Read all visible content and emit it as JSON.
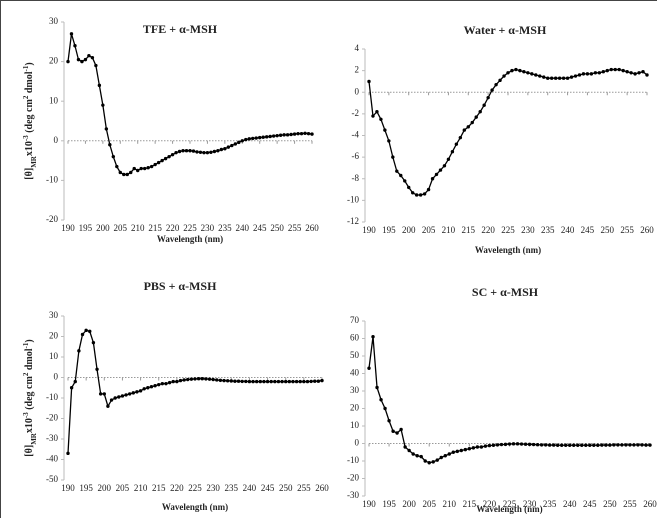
{
  "chart_data": [
    {
      "type": "line",
      "title": "TFE + α-MSH",
      "x_label": "Wavelength (nm)",
      "y_label": [
        "[θ]",
        "MR",
        "x10",
        "-3",
        " (deg cm",
        "2",
        " dmol",
        "-1",
        ")"
      ],
      "color": "#000000",
      "x": [
        190,
        191,
        192,
        193,
        194,
        195,
        196,
        197,
        198,
        199,
        200,
        201,
        202,
        203,
        204,
        205,
        206,
        207,
        208,
        209,
        210,
        211,
        212,
        213,
        214,
        215,
        216,
        217,
        218,
        219,
        220,
        221,
        222,
        223,
        224,
        225,
        226,
        227,
        228,
        229,
        230,
        231,
        232,
        233,
        234,
        235,
        236,
        237,
        238,
        239,
        240,
        241,
        242,
        243,
        244,
        245,
        246,
        247,
        248,
        249,
        250,
        251,
        252,
        253,
        254,
        255,
        256,
        257,
        258,
        259,
        260
      ],
      "values": [
        20,
        27,
        24,
        20.5,
        20,
        20.5,
        21.5,
        21,
        19,
        14,
        9,
        3,
        -1,
        -4,
        -6.5,
        -8,
        -8.5,
        -8.5,
        -8,
        -7,
        -7.5,
        -7,
        -7,
        -6.8,
        -6.5,
        -6,
        -5.5,
        -5,
        -4.5,
        -4,
        -3.5,
        -3,
        -2.7,
        -2.5,
        -2.5,
        -2.5,
        -2.6,
        -2.8,
        -2.9,
        -3,
        -3,
        -2.9,
        -2.7,
        -2.5,
        -2.2,
        -2,
        -1.6,
        -1.2,
        -0.8,
        -0.4,
        0,
        0.3,
        0.5,
        0.6,
        0.7,
        0.8,
        0.9,
        1,
        1.1,
        1.2,
        1.3,
        1.4,
        1.5,
        1.5,
        1.6,
        1.7,
        1.8,
        1.8,
        1.9,
        1.8,
        1.7
      ],
      "xlim": [
        190,
        260
      ],
      "xticks": [
        190,
        195,
        200,
        205,
        210,
        215,
        220,
        225,
        230,
        235,
        240,
        245,
        250,
        255,
        260
      ],
      "ylim": [
        -20,
        30
      ],
      "yticks": [
        -20,
        -10,
        0,
        10,
        20,
        30
      ]
    },
    {
      "type": "line",
      "title": "Water + α-MSH",
      "x_label": "Wavelength (nm)",
      "color": "#000000",
      "x": [
        190,
        191,
        192,
        193,
        194,
        195,
        196,
        197,
        198,
        199,
        200,
        201,
        202,
        203,
        204,
        205,
        206,
        207,
        208,
        209,
        210,
        211,
        212,
        213,
        214,
        215,
        216,
        217,
        218,
        219,
        220,
        221,
        222,
        223,
        224,
        225,
        226,
        227,
        228,
        229,
        230,
        231,
        232,
        233,
        234,
        235,
        236,
        237,
        238,
        239,
        240,
        241,
        242,
        243,
        244,
        245,
        246,
        247,
        248,
        249,
        250,
        251,
        252,
        253,
        254,
        255,
        256,
        257,
        258,
        259,
        260
      ],
      "values": [
        1,
        -2.2,
        -1.8,
        -2.5,
        -3.5,
        -4.5,
        -6,
        -7.3,
        -7.7,
        -8.2,
        -8.8,
        -9.3,
        -9.5,
        -9.5,
        -9.4,
        -9,
        -8,
        -7.6,
        -7.2,
        -6.8,
        -6.2,
        -5.5,
        -4.8,
        -4.2,
        -3.5,
        -3.2,
        -2.8,
        -2.3,
        -1.8,
        -1.2,
        -0.5,
        0.2,
        0.7,
        1.1,
        1.5,
        1.8,
        2,
        2.1,
        2,
        1.9,
        1.8,
        1.7,
        1.6,
        1.5,
        1.4,
        1.3,
        1.3,
        1.3,
        1.3,
        1.3,
        1.3,
        1.4,
        1.5,
        1.6,
        1.7,
        1.7,
        1.7,
        1.8,
        1.8,
        1.9,
        2,
        2.1,
        2.1,
        2.1,
        2,
        1.9,
        1.8,
        1.7,
        1.8,
        1.9,
        1.6
      ],
      "xlim": [
        190,
        260
      ],
      "xticks": [
        190,
        195,
        200,
        205,
        210,
        215,
        220,
        225,
        230,
        235,
        240,
        245,
        250,
        255,
        260
      ],
      "ylim": [
        -12,
        4
      ],
      "yticks": [
        -12,
        -10,
        -8,
        -6,
        -4,
        -2,
        0,
        2,
        4
      ]
    },
    {
      "type": "line",
      "title": "PBS + α-MSH",
      "x_label": "Wavelength (nm)",
      "y_label": [
        "[θ]",
        "MR",
        "x10",
        "-3",
        " (deg cm",
        "2",
        " dmol",
        "-1",
        ")"
      ],
      "color": "#000000",
      "x": [
        190,
        191,
        192,
        193,
        194,
        195,
        196,
        197,
        198,
        199,
        200,
        201,
        202,
        203,
        204,
        205,
        206,
        207,
        208,
        209,
        210,
        211,
        212,
        213,
        214,
        215,
        216,
        217,
        218,
        219,
        220,
        221,
        222,
        223,
        224,
        225,
        226,
        227,
        228,
        229,
        230,
        231,
        232,
        233,
        234,
        235,
        236,
        237,
        238,
        239,
        240,
        241,
        242,
        243,
        244,
        245,
        246,
        247,
        248,
        249,
        250,
        251,
        252,
        253,
        254,
        255,
        256,
        257,
        258,
        259,
        260
      ],
      "values": [
        -37,
        -5,
        -2,
        13,
        21,
        23,
        22.5,
        17,
        4,
        -8,
        -8,
        -14,
        -11,
        -10,
        -9.5,
        -9,
        -8.5,
        -8,
        -7.5,
        -7,
        -6.5,
        -5.5,
        -5,
        -4.5,
        -4,
        -3.5,
        -3,
        -3,
        -2.5,
        -2,
        -2,
        -1.5,
        -1.2,
        -1,
        -0.8,
        -0.7,
        -0.6,
        -0.6,
        -0.7,
        -0.8,
        -1,
        -1.2,
        -1.4,
        -1.5,
        -1.6,
        -1.7,
        -1.8,
        -1.8,
        -1.9,
        -1.9,
        -2,
        -2,
        -2,
        -2,
        -2,
        -2,
        -2,
        -2,
        -2,
        -2,
        -2,
        -2,
        -2,
        -2,
        -2,
        -2,
        -2,
        -1.9,
        -1.8,
        -1.8,
        -1.5
      ],
      "xlim": [
        190,
        260
      ],
      "xticks": [
        190,
        195,
        200,
        205,
        210,
        215,
        220,
        225,
        230,
        235,
        240,
        245,
        250,
        255,
        260
      ],
      "ylim": [
        -50,
        30
      ],
      "yticks": [
        -50,
        -40,
        -30,
        -20,
        -10,
        0,
        10,
        20,
        30
      ]
    },
    {
      "type": "line",
      "title": "SC + α-MSH",
      "x_label": "Wavelength (nm)",
      "color": "#000000",
      "x": [
        190,
        191,
        192,
        193,
        194,
        195,
        196,
        197,
        198,
        199,
        200,
        201,
        202,
        203,
        204,
        205,
        206,
        207,
        208,
        209,
        210,
        211,
        212,
        213,
        214,
        215,
        216,
        217,
        218,
        219,
        220,
        221,
        222,
        223,
        224,
        225,
        226,
        227,
        228,
        229,
        230,
        231,
        232,
        233,
        234,
        235,
        236,
        237,
        238,
        239,
        240,
        241,
        242,
        243,
        244,
        245,
        246,
        247,
        248,
        249,
        250,
        251,
        252,
        253,
        254,
        255,
        256,
        257,
        258,
        259,
        260
      ],
      "values": [
        43,
        61,
        32,
        25,
        20,
        13,
        7,
        6,
        8,
        -2,
        -4,
        -6,
        -7,
        -7.5,
        -10,
        -11,
        -10.5,
        -9.5,
        -8,
        -7,
        -6,
        -5,
        -4.5,
        -4,
        -3.5,
        -3,
        -2.5,
        -2,
        -2,
        -1.5,
        -1.2,
        -1,
        -0.8,
        -0.6,
        -0.5,
        -0.3,
        -0.2,
        -0.2,
        -0.3,
        -0.4,
        -0.5,
        -0.6,
        -0.7,
        -0.8,
        -0.8,
        -0.9,
        -0.9,
        -1,
        -1,
        -1,
        -1,
        -1,
        -1,
        -1,
        -1,
        -1,
        -1,
        -1,
        -0.9,
        -0.9,
        -0.9,
        -0.8,
        -0.8,
        -0.8,
        -0.8,
        -0.8,
        -0.8,
        -0.8,
        -0.8,
        -0.9,
        -0.9
      ],
      "xlim": [
        190,
        260
      ],
      "xticks": [
        190,
        195,
        200,
        205,
        210,
        215,
        220,
        225,
        230,
        235,
        240,
        245,
        250,
        255,
        260
      ],
      "ylim": [
        -30,
        70
      ],
      "yticks": [
        -30,
        -20,
        -10,
        0,
        10,
        20,
        30,
        40,
        50,
        60,
        70
      ]
    }
  ]
}
